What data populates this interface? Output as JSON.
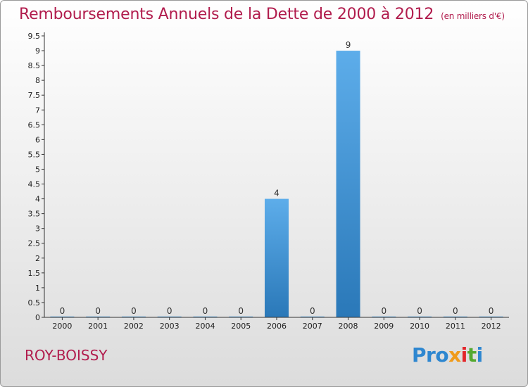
{
  "chart_data": {
    "type": "bar",
    "title": "Remboursements Annuels de la Dette de 2000 à 2012",
    "unit": "(en milliers d'€)",
    "xlabel": "",
    "ylabel": "",
    "categories": [
      "2000",
      "2001",
      "2002",
      "2003",
      "2004",
      "2005",
      "2006",
      "2007",
      "2008",
      "2009",
      "2010",
      "2011",
      "2012"
    ],
    "values": [
      0,
      0,
      0,
      0,
      0,
      0,
      4,
      0,
      9,
      0,
      0,
      0,
      0
    ],
    "data_labels": [
      "0",
      "0",
      "0",
      "0",
      "0",
      "0",
      "4",
      "0",
      "9",
      "0",
      "0",
      "0",
      "0"
    ],
    "ylim": [
      0,
      9.5
    ],
    "yticks": [
      "0",
      "0.5",
      "1",
      "1.5",
      "2",
      "2.5",
      "3",
      "3.5",
      "4",
      "4.5",
      "5",
      "5.5",
      "6",
      "6.5",
      "7",
      "7.5",
      "8",
      "8.5",
      "9",
      "9.5"
    ],
    "grid": false,
    "bar_color_top": "#5dadea",
    "bar_color_bottom": "#2a78b8"
  },
  "footer": {
    "town": "ROY-BOISSY",
    "brand": [
      "Pro",
      "x",
      "i",
      "t",
      "i"
    ]
  },
  "colors": {
    "title": "#b11c4d",
    "axis": "#333333"
  }
}
